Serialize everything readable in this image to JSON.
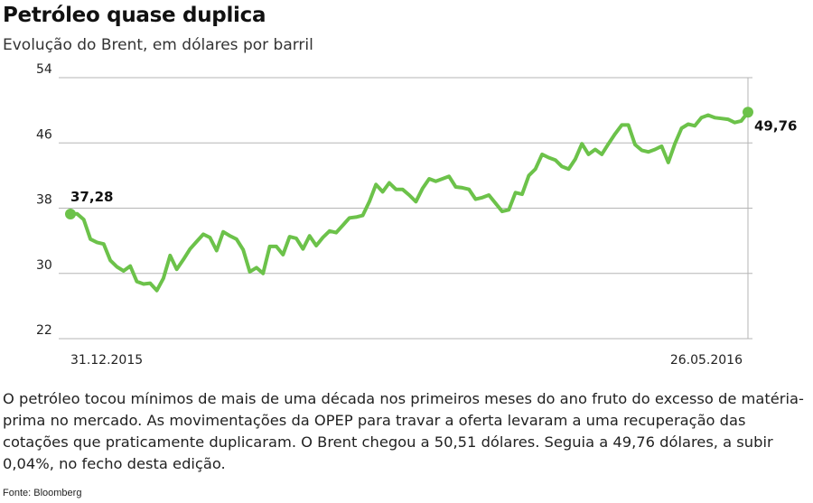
{
  "header": {
    "title": "Petróleo quase duplica",
    "subtitle": "Evolução do Brent, em dólares por barril"
  },
  "colors": {
    "line": "#6cc24a",
    "grid": "#b5b5b5",
    "text": "#222222"
  },
  "chart_data": {
    "type": "line",
    "ylim": [
      22,
      54
    ],
    "yticks": [
      22,
      30,
      38,
      46,
      54
    ],
    "ytick_labels": [
      "22",
      "30",
      "38",
      "46",
      "54"
    ],
    "x_start_label": "31.12.2015",
    "x_end_label": "26.05.2016",
    "start_value_label": "37,28",
    "end_value_label": "49,76",
    "series": [
      {
        "values": [
          37.28,
          37.3,
          36.6,
          34.2,
          33.8,
          33.6,
          31.6,
          30.8,
          30.3,
          30.9,
          29.0,
          28.7,
          28.8,
          27.9,
          29.4,
          32.2,
          30.5,
          31.7,
          33.0,
          33.9,
          34.8,
          34.4,
          32.8,
          35.1,
          34.6,
          34.2,
          32.9,
          30.2,
          30.7,
          30.0,
          33.3,
          33.3,
          32.3,
          34.5,
          34.3,
          33.0,
          34.6,
          33.4,
          34.4,
          35.2,
          35.0,
          35.9,
          36.8,
          36.9,
          37.1,
          38.8,
          40.9,
          40.0,
          41.1,
          40.3,
          40.3,
          39.6,
          38.8,
          40.4,
          41.6,
          41.3,
          41.6,
          41.9,
          40.6,
          40.5,
          40.3,
          39.1,
          39.3,
          39.6,
          38.6,
          37.6,
          37.8,
          39.9,
          39.7,
          42.0,
          42.8,
          44.6,
          44.2,
          43.9,
          43.1,
          42.8,
          44.0,
          45.9,
          44.6,
          45.2,
          44.6,
          45.9,
          47.1,
          48.2,
          48.2,
          45.8,
          45.1,
          44.9,
          45.2,
          45.6,
          43.6,
          45.9,
          47.8,
          48.3,
          48.1,
          49.1,
          49.4,
          49.1,
          49.0,
          48.9,
          48.5,
          48.7,
          49.76
        ]
      }
    ]
  },
  "description": "O petróleo tocou mínimos de mais de uma década nos primeiros meses do ano fruto do excesso de matéria-prima no mercado. As movimentações da OPEP para travar a oferta levaram a uma recuperação das cotações que praticamente duplicaram. O Brent chegou a 50,51 dólares. Seguia a 49,76 dólares, a subir 0,04%, no fecho desta edição.",
  "source": "Fonte: Bloomberg"
}
